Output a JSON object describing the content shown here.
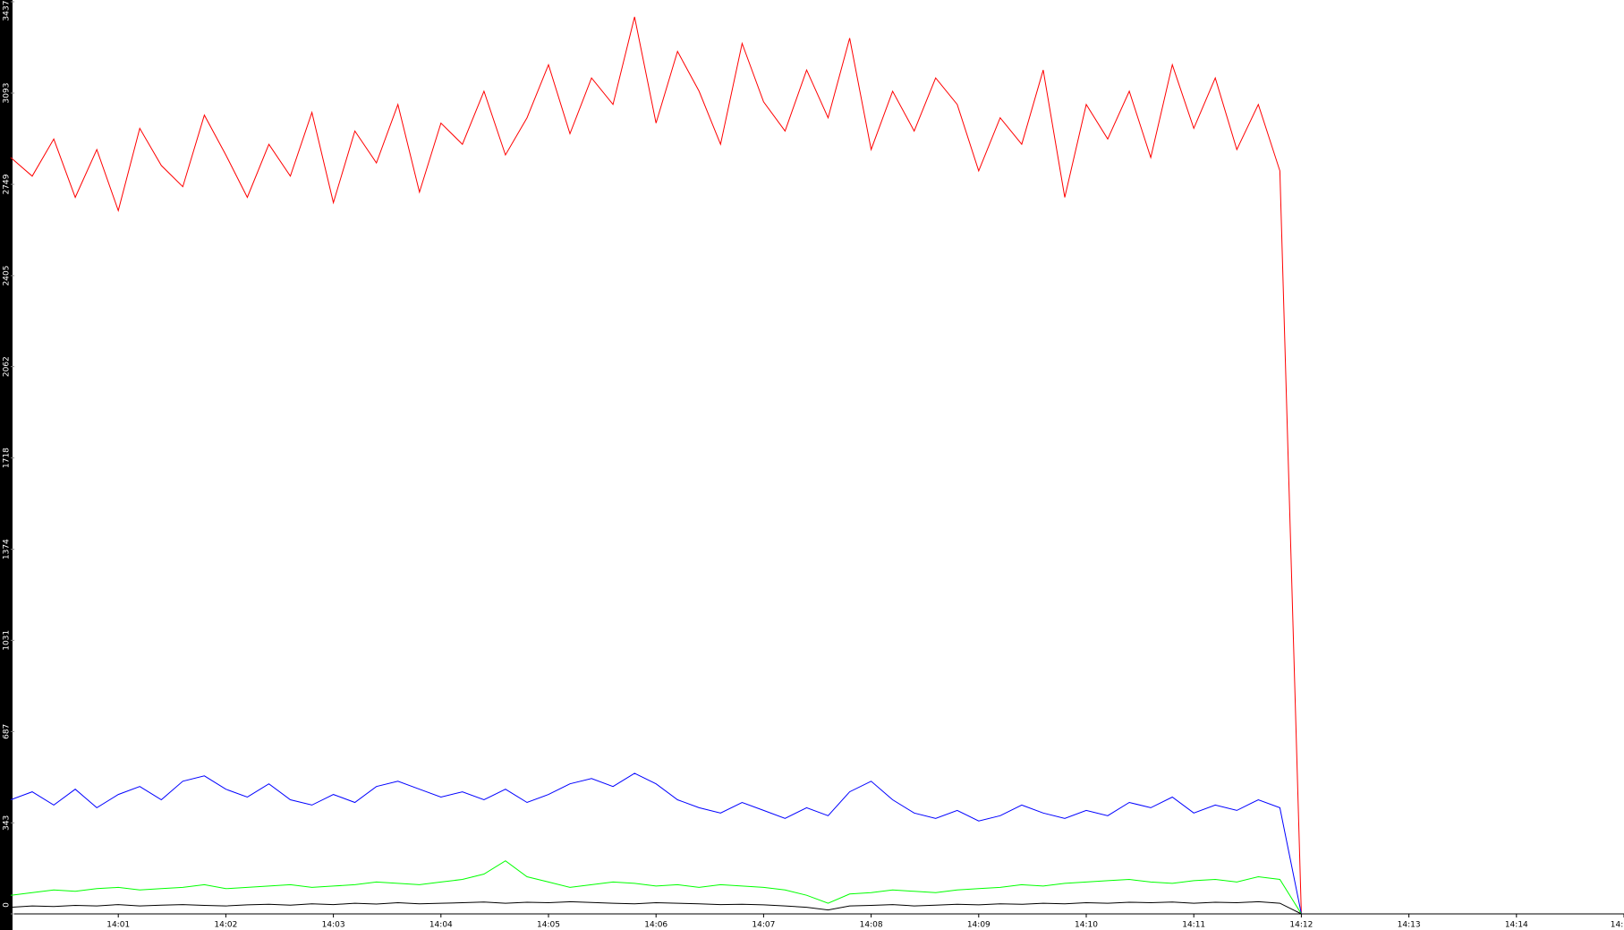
{
  "chart_data": {
    "type": "line",
    "xlim": [
      840,
      855
    ],
    "xticks": [
      {
        "value": 841,
        "label": "14:01"
      },
      {
        "value": 842,
        "label": "14:02"
      },
      {
        "value": 843,
        "label": "14:03"
      },
      {
        "value": 844,
        "label": "14:04"
      },
      {
        "value": 845,
        "label": "14:05"
      },
      {
        "value": 846,
        "label": "14:06"
      },
      {
        "value": 847,
        "label": "14:07"
      },
      {
        "value": 848,
        "label": "14:08"
      },
      {
        "value": 849,
        "label": "14:09"
      },
      {
        "value": 850,
        "label": "14:10"
      },
      {
        "value": 851,
        "label": "14:11"
      },
      {
        "value": 852,
        "label": "14:12"
      },
      {
        "value": 853,
        "label": "14:13"
      },
      {
        "value": 854,
        "label": "14:14"
      },
      {
        "value": 855,
        "label": "14:"
      }
    ],
    "ylim": [
      0,
      3437
    ],
    "yticks": [
      0,
      343,
      687,
      1031,
      1374,
      1718,
      2062,
      2405,
      2749,
      3093,
      3437
    ],
    "x": [
      840.0,
      840.2,
      840.4,
      840.6,
      840.8,
      841.0,
      841.2,
      841.4,
      841.6,
      841.8,
      842.0,
      842.2,
      842.4,
      842.6,
      842.8,
      843.0,
      843.2,
      843.4,
      843.6,
      843.8,
      844.0,
      844.2,
      844.4,
      844.6,
      844.8,
      845.0,
      845.2,
      845.4,
      845.6,
      845.8,
      846.0,
      846.2,
      846.4,
      846.6,
      846.8,
      847.0,
      847.2,
      847.4,
      847.6,
      847.8,
      848.0,
      848.2,
      848.4,
      848.6,
      848.8,
      849.0,
      849.2,
      849.4,
      849.6,
      849.8,
      850.0,
      850.2,
      850.4,
      850.6,
      850.8,
      851.0,
      851.2,
      851.4,
      851.6,
      851.8,
      852.0
    ],
    "series": [
      {
        "color": "#ff0000",
        "values": [
          2850,
          2780,
          2920,
          2700,
          2880,
          2650,
          2960,
          2820,
          2740,
          3010,
          2860,
          2700,
          2900,
          2780,
          3020,
          2680,
          2950,
          2830,
          3050,
          2720,
          2980,
          2900,
          3100,
          2860,
          3000,
          3200,
          2940,
          3150,
          3050,
          3380,
          2980,
          3250,
          3100,
          2900,
          3280,
          3060,
          2950,
          3180,
          3000,
          3300,
          2880,
          3100,
          2950,
          3150,
          3050,
          2800,
          3000,
          2900,
          3180,
          2700,
          3050,
          2920,
          3100,
          2850,
          3200,
          2960,
          3150,
          2880,
          3050,
          2800,
          0
        ]
      },
      {
        "color": "#0000ff",
        "values": [
          430,
          460,
          410,
          470,
          400,
          450,
          480,
          430,
          500,
          520,
          470,
          440,
          490,
          430,
          410,
          450,
          420,
          480,
          500,
          470,
          440,
          460,
          430,
          470,
          420,
          450,
          490,
          510,
          480,
          530,
          490,
          430,
          400,
          380,
          420,
          390,
          360,
          400,
          370,
          460,
          500,
          430,
          380,
          360,
          390,
          350,
          370,
          410,
          380,
          360,
          390,
          370,
          420,
          400,
          440,
          380,
          410,
          390,
          430,
          400,
          0
        ]
      },
      {
        "color": "#00ff00",
        "values": [
          70,
          80,
          90,
          85,
          95,
          100,
          90,
          95,
          100,
          110,
          95,
          100,
          105,
          110,
          100,
          105,
          110,
          120,
          115,
          110,
          120,
          130,
          150,
          200,
          140,
          120,
          100,
          110,
          120,
          115,
          105,
          110,
          100,
          110,
          105,
          100,
          90,
          70,
          40,
          75,
          80,
          90,
          85,
          80,
          90,
          95,
          100,
          110,
          105,
          115,
          120,
          125,
          130,
          120,
          115,
          125,
          130,
          120,
          140,
          130,
          0
        ]
      },
      {
        "color": "#000000",
        "values": [
          25,
          30,
          28,
          32,
          30,
          35,
          30,
          33,
          35,
          32,
          30,
          34,
          36,
          33,
          38,
          35,
          40,
          37,
          42,
          38,
          40,
          42,
          45,
          40,
          44,
          42,
          46,
          43,
          40,
          38,
          42,
          40,
          38,
          35,
          36,
          34,
          30,
          25,
          15,
          30,
          32,
          35,
          30,
          33,
          36,
          34,
          38,
          36,
          40,
          38,
          42,
          40,
          44,
          42,
          45,
          40,
          44,
          42,
          46,
          40,
          0
        ]
      }
    ]
  }
}
